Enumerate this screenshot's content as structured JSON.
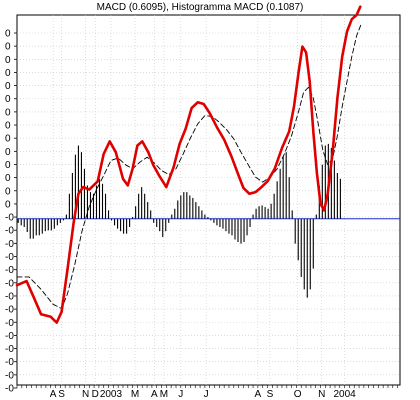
{
  "chart_data": {
    "type": "line",
    "title": "MACD (0.6095), Histogramma MACD (0.1087)",
    "xlabel": "",
    "ylabel": "",
    "y_tick_labels": [
      "0",
      "0",
      "0",
      "0",
      "0",
      "0",
      "0",
      "0",
      "0",
      "0",
      "0",
      "0",
      "0",
      "0",
      "-0",
      "-0",
      "-0",
      "-0",
      "-0",
      "-0",
      "-0",
      "-0",
      "-0",
      "-0",
      "-0",
      "-0",
      "-0",
      "-0"
    ],
    "x_tick_labels": [
      {
        "t": 30,
        "label": "A"
      },
      {
        "t": 37,
        "label": "S"
      },
      {
        "t": 57,
        "label": "N"
      },
      {
        "t": 65,
        "label": "D"
      },
      {
        "t": 78,
        "label": "2003"
      },
      {
        "t": 98,
        "label": "M"
      },
      {
        "t": 114,
        "label": "A"
      },
      {
        "t": 122,
        "label": "M"
      },
      {
        "t": 136,
        "label": "J"
      },
      {
        "t": 157,
        "label": "J"
      },
      {
        "t": 200,
        "label": "A"
      },
      {
        "t": 210,
        "label": "S"
      },
      {
        "t": 233,
        "label": "O"
      },
      {
        "t": 253,
        "label": "N"
      },
      {
        "t": 272,
        "label": "2004"
      }
    ],
    "x_range": [
      0,
      318
    ],
    "y_range": [
      -2.0,
      2.45
    ],
    "grid": true,
    "zero_line": true,
    "series": [
      {
        "role": "macd",
        "color": "#e00000",
        "points": [
          [
            0,
            -0.8
          ],
          [
            8,
            -0.75
          ],
          [
            14,
            -0.95
          ],
          [
            20,
            -1.15
          ],
          [
            28,
            -1.18
          ],
          [
            33,
            -1.25
          ],
          [
            37,
            -1.12
          ],
          [
            42,
            -0.6
          ],
          [
            47,
            -0.05
          ],
          [
            51,
            0.3
          ],
          [
            55,
            0.38
          ],
          [
            60,
            0.35
          ],
          [
            67,
            0.45
          ],
          [
            72,
            0.78
          ],
          [
            77,
            0.93
          ],
          [
            82,
            0.8
          ],
          [
            88,
            0.48
          ],
          [
            92,
            0.4
          ],
          [
            96,
            0.6
          ],
          [
            100,
            0.88
          ],
          [
            104,
            0.93
          ],
          [
            109,
            0.8
          ],
          [
            113,
            0.65
          ],
          [
            118,
            0.52
          ],
          [
            124,
            0.38
          ],
          [
            130,
            0.62
          ],
          [
            135,
            0.9
          ],
          [
            140,
            1.08
          ],
          [
            145,
            1.33
          ],
          [
            150,
            1.4
          ],
          [
            155,
            1.38
          ],
          [
            160,
            1.27
          ],
          [
            166,
            1.1
          ],
          [
            172,
            0.95
          ],
          [
            178,
            0.75
          ],
          [
            184,
            0.52
          ],
          [
            188,
            0.37
          ],
          [
            193,
            0.3
          ],
          [
            198,
            0.32
          ],
          [
            203,
            0.38
          ],
          [
            208,
            0.45
          ],
          [
            214,
            0.6
          ],
          [
            220,
            0.85
          ],
          [
            226,
            1.05
          ],
          [
            230,
            1.35
          ],
          [
            234,
            1.78
          ],
          [
            237,
            2.07
          ],
          [
            240,
            2.0
          ],
          [
            243,
            1.65
          ],
          [
            246,
            1.05
          ],
          [
            249,
            0.55
          ],
          [
            252,
            0.18
          ],
          [
            255,
            0.1
          ],
          [
            258,
            0.3
          ],
          [
            262,
            0.8
          ],
          [
            266,
            1.45
          ],
          [
            270,
            1.95
          ],
          [
            274,
            2.25
          ],
          [
            278,
            2.4
          ],
          [
            282,
            2.45
          ],
          [
            285,
            2.55
          ]
        ]
      },
      {
        "role": "signal",
        "color": "#000000",
        "dashed": true,
        "points": [
          [
            0,
            -0.7
          ],
          [
            10,
            -0.7
          ],
          [
            20,
            -0.85
          ],
          [
            30,
            -1.03
          ],
          [
            37,
            -1.08
          ],
          [
            42,
            -0.9
          ],
          [
            48,
            -0.55
          ],
          [
            54,
            -0.15
          ],
          [
            60,
            0.15
          ],
          [
            66,
            0.35
          ],
          [
            72,
            0.52
          ],
          [
            78,
            0.7
          ],
          [
            84,
            0.73
          ],
          [
            90,
            0.65
          ],
          [
            96,
            0.6
          ],
          [
            102,
            0.68
          ],
          [
            108,
            0.74
          ],
          [
            114,
            0.67
          ],
          [
            120,
            0.58
          ],
          [
            126,
            0.53
          ],
          [
            132,
            0.6
          ],
          [
            138,
            0.78
          ],
          [
            144,
            0.97
          ],
          [
            150,
            1.14
          ],
          [
            156,
            1.24
          ],
          [
            162,
            1.23
          ],
          [
            168,
            1.16
          ],
          [
            174,
            1.07
          ],
          [
            180,
            0.96
          ],
          [
            186,
            0.8
          ],
          [
            192,
            0.65
          ],
          [
            198,
            0.5
          ],
          [
            204,
            0.44
          ],
          [
            210,
            0.5
          ],
          [
            216,
            0.6
          ],
          [
            222,
            0.78
          ],
          [
            228,
            1.0
          ],
          [
            234,
            1.3
          ],
          [
            238,
            1.52
          ],
          [
            242,
            1.58
          ],
          [
            246,
            1.45
          ],
          [
            250,
            1.15
          ],
          [
            254,
            0.82
          ],
          [
            258,
            0.65
          ],
          [
            262,
            0.72
          ],
          [
            266,
            1.0
          ],
          [
            270,
            1.35
          ],
          [
            274,
            1.65
          ],
          [
            278,
            1.95
          ],
          [
            282,
            2.2
          ],
          [
            286,
            2.35
          ]
        ]
      }
    ],
    "histogram": {
      "color": "#000000",
      "start": 1,
      "step": 2.5,
      "values": [
        -0.05,
        -0.08,
        -0.1,
        -0.16,
        -0.24,
        -0.24,
        -0.2,
        -0.2,
        -0.18,
        -0.15,
        -0.14,
        -0.14,
        -0.12,
        -0.08,
        -0.05,
        -0.02,
        0.05,
        0.3,
        0.55,
        0.77,
        0.88,
        0.8,
        0.6,
        0.4,
        0.32,
        0.3,
        0.4,
        0.48,
        0.42,
        0.3,
        0.1,
        -0.02,
        -0.08,
        -0.12,
        -0.15,
        -0.18,
        -0.18,
        -0.1,
        0.02,
        0.15,
        0.3,
        0.38,
        0.3,
        0.2,
        0.1,
        -0.05,
        -0.1,
        -0.15,
        -0.22,
        -0.15,
        -0.05,
        0.05,
        0.12,
        0.22,
        0.28,
        0.32,
        0.32,
        0.28,
        0.25,
        0.2,
        0.15,
        0.1,
        0.05,
        0.02,
        -0.02,
        -0.05,
        -0.08,
        -0.1,
        -0.12,
        -0.15,
        -0.18,
        -0.2,
        -0.25,
        -0.28,
        -0.3,
        -0.28,
        -0.2,
        -0.1,
        0.05,
        0.12,
        0.15,
        0.16,
        0.14,
        0.12,
        0.18,
        0.3,
        0.45,
        0.6,
        0.75,
        0.8,
        0.5,
        0.1,
        -0.3,
        -0.5,
        -0.7,
        -0.85,
        -0.95,
        -0.85,
        -0.6,
        0.05,
        0.4,
        0.65,
        0.88,
        0.9,
        0.85,
        0.7,
        0.55,
        0.48
      ]
    }
  }
}
